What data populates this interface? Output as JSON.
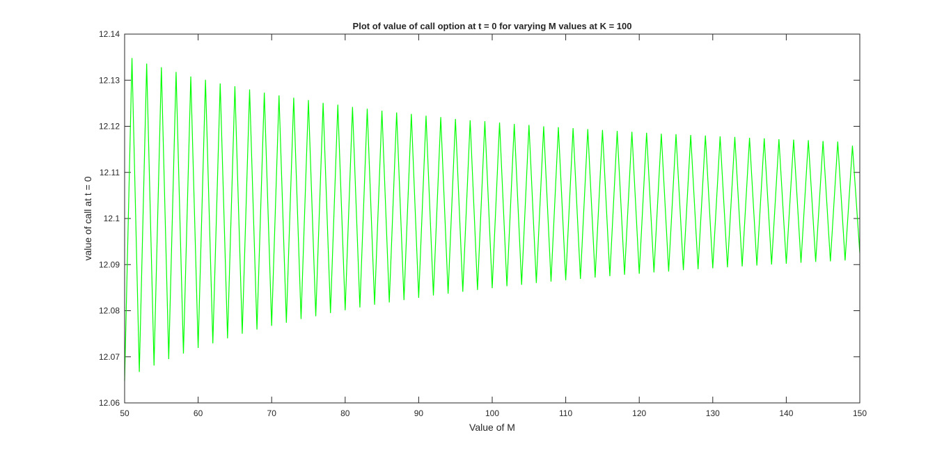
{
  "chart_data": {
    "type": "line",
    "title": "Plot of value of call option at t = 0 for varying M values at K = 100",
    "xlabel": "Value of M",
    "ylabel": "value of call at t = 0",
    "xlim": [
      50,
      150
    ],
    "ylim": [
      12.06,
      12.14
    ],
    "xticks": [
      "50",
      "60",
      "70",
      "80",
      "90",
      "100",
      "110",
      "120",
      "130",
      "140",
      "150"
    ],
    "yticks": [
      "12.06",
      "12.07",
      "12.08",
      "12.09",
      "12.1",
      "12.11",
      "12.12",
      "12.13",
      "12.14"
    ],
    "grid": false,
    "series": [
      {
        "color": "#00ff00",
        "x_start": 50,
        "x_end": 150,
        "x_step": 1,
        "y": [
          12.0648,
          12.1348,
          12.0667,
          12.1336,
          12.0681,
          12.1328,
          12.0695,
          12.1318,
          12.0707,
          12.1308,
          12.0719,
          12.1301,
          12.0729,
          12.1293,
          12.074,
          12.1287,
          12.075,
          12.128,
          12.0759,
          12.1273,
          12.0767,
          12.1267,
          12.0774,
          12.1262,
          12.0782,
          12.1257,
          12.0788,
          12.1251,
          12.0795,
          12.1247,
          12.0801,
          12.1242,
          12.0807,
          12.1238,
          12.0813,
          12.1234,
          12.0818,
          12.123,
          12.0823,
          12.1227,
          12.0828,
          12.1223,
          12.0833,
          12.122,
          12.0837,
          12.1216,
          12.0841,
          12.1213,
          12.0845,
          12.1211,
          12.0849,
          12.1208,
          12.0853,
          12.1205,
          12.0856,
          12.1203,
          12.086,
          12.12,
          12.0863,
          12.1198,
          12.0866,
          12.1196,
          12.0869,
          12.1194,
          12.0872,
          12.1192,
          12.0875,
          12.119,
          12.0878,
          12.1188,
          12.088,
          12.1186,
          12.0883,
          12.1184,
          12.0885,
          12.1183,
          12.0888,
          12.1181,
          12.089,
          12.118,
          12.0892,
          12.1178,
          12.0894,
          12.1177,
          12.0896,
          12.1175,
          12.0898,
          12.1174,
          12.09,
          12.1172,
          12.0902,
          12.1171,
          12.0904,
          12.117,
          12.0906,
          12.1168,
          12.0907,
          12.1167,
          12.0909,
          12.1158,
          12.0925
        ]
      }
    ]
  }
}
